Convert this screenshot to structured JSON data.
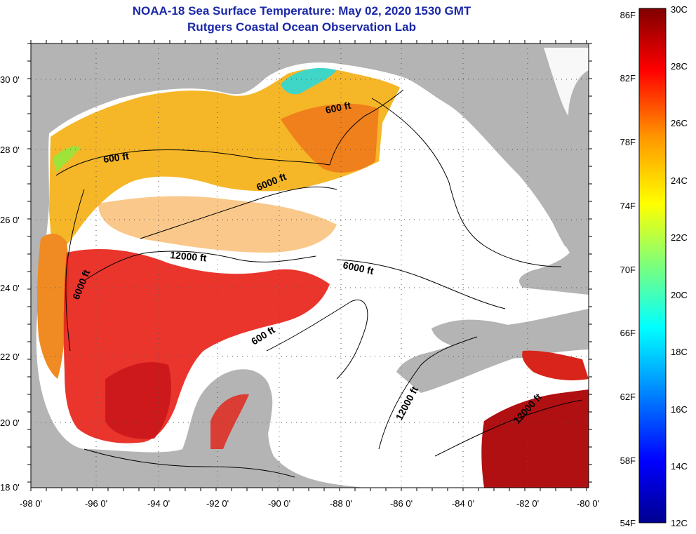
{
  "title": {
    "line1": "NOAA-18 Sea Surface Temperature:  May 02, 2020 1530 GMT",
    "line2": "Rutgers Coastal Ocean Observation Lab"
  },
  "axes": {
    "lat_labels": [
      "30 0'",
      "28 0'",
      "26 0'",
      "24 0'",
      "22 0'",
      "20 0'",
      "18 0'"
    ],
    "lon_labels": [
      "-98 0'",
      "-96 0'",
      "-94 0'",
      "-92 0'",
      "-90 0'",
      "-88 0'",
      "-86 0'",
      "-84 0'",
      "-82 0'",
      "-80 0'"
    ]
  },
  "contours": {
    "labels": [
      "600 ft",
      "600 ft",
      "6000 ft",
      "12000 ft",
      "6000 ft",
      "6000 ft",
      "600 ft",
      "12000 ft",
      "12000 ft"
    ]
  },
  "colorbar": {
    "fahrenheit": [
      "86F",
      "82F",
      "78F",
      "74F",
      "70F",
      "66F",
      "62F",
      "58F",
      "54F"
    ],
    "celsius": [
      "30C",
      "28C",
      "26C",
      "24C",
      "22C",
      "20C",
      "18C",
      "16C",
      "14C",
      "12C"
    ]
  },
  "colors": {
    "land": "#b4b4b4",
    "cloud": "#ffffff",
    "title": "#1a28a8"
  }
}
